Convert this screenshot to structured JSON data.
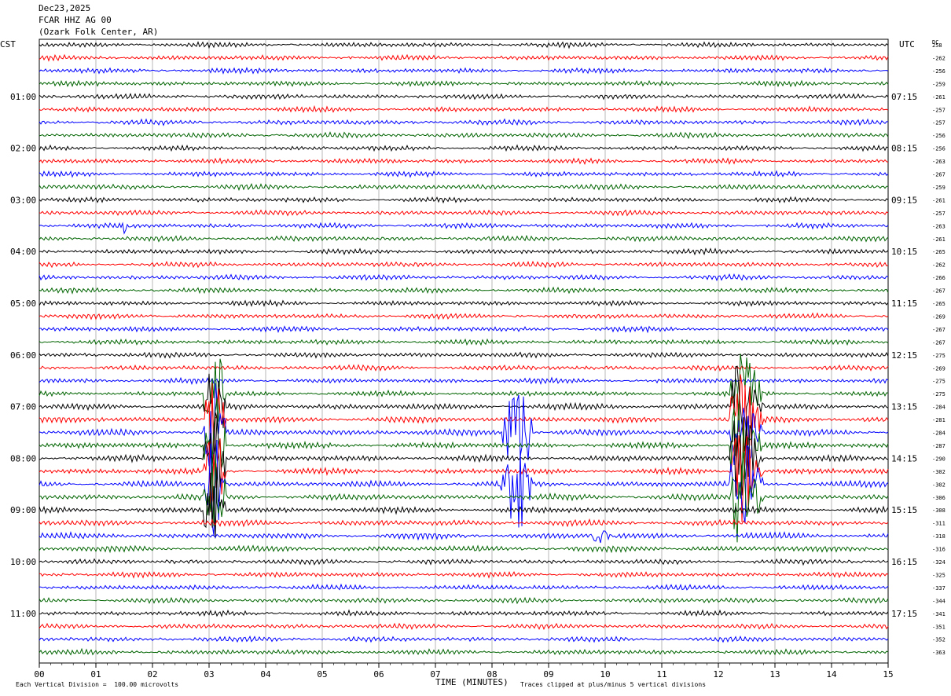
{
  "header": {
    "date": "Dec23,2025",
    "station": "FCAR HHZ AG 00",
    "location": "(Ozark Folk Center, AR)"
  },
  "left_axis_title": "CST",
  "right_axis_title": "UTC",
  "dc_title": "DC",
  "x_axis_title": "TIME (MINUTES)",
  "footer": {
    "scale_note": "Each Vertical Division =  100.00 microvolts",
    "clip_note": "Traces clipped at plus/minus 5 vertical divisions"
  },
  "colors": {
    "trace": [
      "#000000",
      "#ff0000",
      "#0000ff",
      "#006400"
    ],
    "grid": "#888888"
  },
  "chart_data": {
    "type": "line",
    "title": "FCAR HHZ AG 00",
    "xlabel": "TIME (MINUTES)",
    "xlim": [
      0,
      15
    ],
    "x_ticks": [
      "00",
      "01",
      "02",
      "03",
      "04",
      "05",
      "06",
      "07",
      "08",
      "09",
      "10",
      "11",
      "12",
      "13",
      "14",
      "15"
    ],
    "grid": true,
    "trace_minutes": 15,
    "left_labels": [
      {
        "row": 4,
        "text": "01:00"
      },
      {
        "row": 8,
        "text": "02:00"
      },
      {
        "row": 12,
        "text": "03:00"
      },
      {
        "row": 16,
        "text": "04:00"
      },
      {
        "row": 20,
        "text": "05:00"
      },
      {
        "row": 24,
        "text": "06:00"
      },
      {
        "row": 28,
        "text": "07:00"
      },
      {
        "row": 32,
        "text": "08:00"
      },
      {
        "row": 36,
        "text": "09:00"
      },
      {
        "row": 40,
        "text": "10:00"
      },
      {
        "row": 44,
        "text": "11:00"
      }
    ],
    "right_labels": [
      {
        "row": 4,
        "text": "07:15"
      },
      {
        "row": 8,
        "text": "08:15"
      },
      {
        "row": 12,
        "text": "09:15"
      },
      {
        "row": 16,
        "text": "10:15"
      },
      {
        "row": 20,
        "text": "11:15"
      },
      {
        "row": 24,
        "text": "12:15"
      },
      {
        "row": 28,
        "text": "13:15"
      },
      {
        "row": 32,
        "text": "14:15"
      },
      {
        "row": 36,
        "text": "15:15"
      },
      {
        "row": 40,
        "text": "16:15"
      },
      {
        "row": 44,
        "text": "17:15"
      }
    ],
    "dc_offsets": [
      "258",
      "-262",
      "-256",
      "-259",
      "-261",
      "-257",
      "-257",
      "-256",
      "-256",
      "-263",
      "-267",
      "-259",
      "-261",
      "-257",
      "-263",
      "-261",
      "-265",
      "-262",
      "-266",
      "-267",
      "-265",
      "-269",
      "-267",
      "-267",
      "-275",
      "-269",
      "-275",
      "-275",
      "-284",
      "-281",
      "-284",
      "-287",
      "-290",
      "-302",
      "-302",
      "-306",
      "-308",
      "-311",
      "-318",
      "-316",
      "-324",
      "-325",
      "-337",
      "-344",
      "-341",
      "-351",
      "-352",
      "-363"
    ],
    "events": [
      {
        "rows": [
          27,
          36
        ],
        "start_min": 2.9,
        "end_min": 3.3,
        "peak_min": 3.1,
        "note": "large burst"
      },
      {
        "rows": [
          29,
          37
        ],
        "start_min": 8.15,
        "end_min": 8.7,
        "peak_min": 8.45,
        "color_row": 34,
        "note": "blue burst"
      },
      {
        "rows": [
          27,
          35
        ],
        "start_min": 12.2,
        "end_min": 12.8,
        "peak_min": 12.4,
        "note": "large burst"
      },
      {
        "rows": [
          38,
          38
        ],
        "start_min": 9.8,
        "end_min": 10.2,
        "peak_min": 9.9,
        "note": "small burst"
      },
      {
        "rows": [
          14,
          14
        ],
        "start_min": 1.45,
        "end_min": 1.6,
        "peak_min": 1.5,
        "note": "small spike"
      }
    ]
  }
}
